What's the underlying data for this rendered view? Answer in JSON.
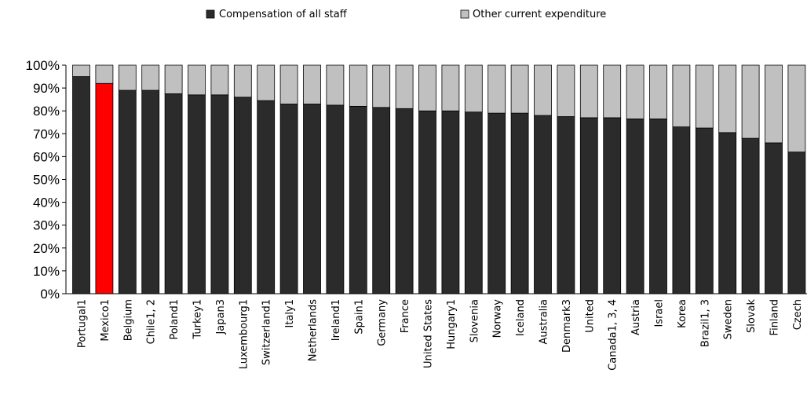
{
  "chart_data": {
    "type": "bar",
    "stacked": true,
    "percent_axis": true,
    "title": "",
    "xlabel": "",
    "ylabel": "",
    "ylim": [
      0,
      100
    ],
    "y_ticks": [
      "0%",
      "10%",
      "20%",
      "30%",
      "40%",
      "50%",
      "60%",
      "70%",
      "80%",
      "90%",
      "100%"
    ],
    "legend": {
      "placement": "top-center",
      "items": [
        "Compensation of all staff",
        "Other current expenditure"
      ]
    },
    "categories": [
      "Portugal1",
      "Mexico1",
      "Belgium",
      "Chile1, 2",
      "Poland1",
      "Turkey1",
      "Japan3",
      "Luxembourg1",
      "Switzerland1",
      "Italy1",
      "Netherlands",
      "Ireland1",
      "Spain1",
      "Germany",
      "France",
      "United States",
      "Hungary1",
      "Slovenia",
      "Norway",
      "Iceland",
      "Australia",
      "Denmark3",
      "United",
      "Canada1, 3, 4",
      "Austria",
      "Israel",
      "Korea",
      "Brazil1, 3",
      "Sweden",
      "Slovak",
      "Finland",
      "Czech"
    ],
    "series": [
      {
        "name": "Compensation of all staff",
        "color": "#2b2b2b",
        "values": [
          95,
          92,
          89,
          89,
          87.5,
          87,
          87,
          86,
          84.5,
          83,
          83,
          82.5,
          82,
          81.5,
          81,
          80,
          80,
          79.5,
          79,
          79,
          78,
          77.5,
          77,
          77,
          76.5,
          76.5,
          73,
          72.5,
          70.5,
          68,
          66,
          62
        ]
      },
      {
        "name": "Other current expenditure",
        "color": "#c0c0c0",
        "values": [
          5,
          8,
          11,
          11,
          12.5,
          13,
          13,
          14,
          15.5,
          17,
          17,
          17.5,
          18,
          18.5,
          19,
          20,
          20,
          20.5,
          21,
          21,
          22,
          22.5,
          23,
          23,
          23.5,
          23.5,
          27,
          27.5,
          29.5,
          32,
          34,
          38
        ]
      }
    ],
    "highlight": {
      "category": "Mexico1",
      "color": "#ff0000"
    }
  }
}
